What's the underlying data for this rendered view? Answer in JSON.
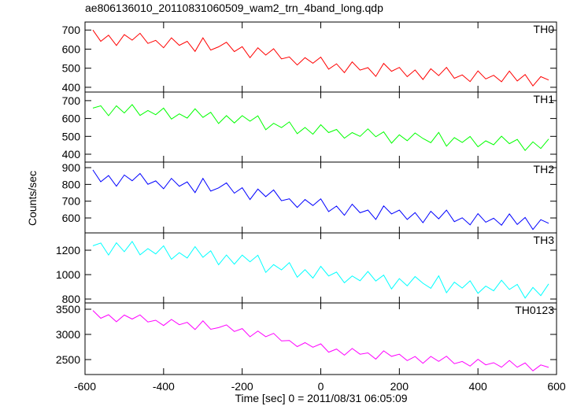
{
  "chart_data": {
    "type": "line",
    "title": "ae806136010_20110831060509_wam2_trn_4band_long.qdp",
    "xlabel": "Time [sec] 0 = 2011/08/31 06:05:09",
    "ylabel": "Counts/sec",
    "xlim": [
      -600,
      600
    ],
    "xticks": [
      -600,
      -400,
      -200,
      0,
      200,
      400,
      600
    ],
    "x": [
      -580,
      -560,
      -540,
      -520,
      -500,
      -480,
      -460,
      -440,
      -420,
      -400,
      -380,
      -360,
      -340,
      -320,
      -300,
      -280,
      -260,
      -240,
      -220,
      -200,
      -180,
      -160,
      -140,
      -120,
      -100,
      -80,
      -60,
      -40,
      -20,
      0,
      20,
      40,
      60,
      80,
      100,
      120,
      140,
      160,
      180,
      200,
      220,
      240,
      260,
      280,
      300,
      320,
      340,
      360,
      380,
      400,
      420,
      440,
      460,
      480,
      500,
      520,
      540,
      560,
      580
    ],
    "panels": [
      {
        "ylim": [
          375,
          742
        ],
        "yticks": [
          400,
          500,
          600,
          700
        ],
        "series": [
          {
            "name": "TH0",
            "color": "#ff0000",
            "values": [
              700,
              641,
              673,
              619,
              676,
              647,
              683,
              630,
              646,
              607,
              659,
              620,
              641,
              588,
              659,
              595,
              612,
              636,
              587,
              613,
              555,
              607,
              569,
              602,
              549,
              559,
              517,
              555,
              526,
              558,
              495,
              523,
              477,
              533,
              490,
              503,
              457,
              525,
              484,
              504,
              456,
              491,
              441,
              497,
              461,
              504,
              447,
              465,
              430,
              486,
              444,
              463,
              429,
              485,
              433,
              467,
              407,
              456,
              438
            ]
          }
        ]
      },
      {
        "ylim": [
          356,
          748
        ],
        "yticks": [
          400,
          500,
          600,
          700
        ],
        "series": [
          {
            "name": "TH1",
            "color": "#00ff00",
            "values": [
              658,
              671,
              616,
              671,
              631,
              678,
              617,
              645,
              621,
              658,
              597,
              626,
              602,
              654,
              606,
              635,
              572,
              616,
              575,
              616,
              585,
              615,
              537,
              573,
              549,
              581,
              515,
              550,
              512,
              565,
              521,
              539,
              490,
              521,
              500,
              542,
              498,
              525,
              462,
              509,
              476,
              519,
              488,
              465,
              522,
              445,
              493,
              466,
              499,
              442,
              475,
              453,
              501,
              459,
              483,
              421,
              469,
              432,
              485
            ]
          }
        ]
      },
      {
        "ylim": [
          511,
          933
        ],
        "yticks": [
          600,
          700,
          800,
          900
        ],
        "series": [
          {
            "name": "TH2",
            "color": "#0000ff",
            "values": [
              886,
              816,
              853,
              789,
              856,
              822,
              865,
              801,
              821,
              774,
              836,
              789,
              815,
              751,
              836,
              760,
              779,
              809,
              748,
              780,
              710,
              772,
              727,
              767,
              703,
              714,
              663,
              710,
              674,
              714,
              638,
              671,
              616,
              682,
              631,
              647,
              591,
              672,
              624,
              647,
              591,
              632,
              572,
              640,
              595,
              647,
              578,
              601,
              559,
              626,
              575,
              598,
              557,
              624,
              561,
              603,
              531,
              590,
              568
            ]
          }
        ]
      },
      {
        "ylim": [
          768,
          1342
        ],
        "yticks": [
          800,
          1000,
          1200
        ],
        "series": [
          {
            "name": "TH3",
            "color": "#00ffff",
            "values": [
              1236,
              1259,
              1161,
              1261,
              1188,
              1272,
              1162,
              1213,
              1170,
              1236,
              1126,
              1180,
              1136,
              1229,
              1142,
              1195,
              1081,
              1161,
              1086,
              1160,
              1105,
              1159,
              1018,
              1082,
              1039,
              1098,
              979,
              1041,
              972,
              1068,
              989,
              1021,
              933,
              989,
              950,
              1026,
              947,
              996,
              883,
              967,
              908,
              984,
              929,
              888,
              990,
              852,
              938,
              890,
              949,
              847,
              906,
              867,
              954,
              878,
              920,
              808,
              895,
              828,
              924
            ]
          }
        ]
      },
      {
        "ylim": [
          2203,
          3625
        ],
        "yticks": [
          2500,
          3000,
          3500
        ],
        "series": [
          {
            "name": "TH0123",
            "color": "#ff00ff",
            "values": [
              3475,
              3320,
              3391,
              3251,
              3384,
              3304,
              3388,
              3247,
              3281,
              3176,
              3297,
              3192,
              3239,
              3097,
              3268,
              3101,
              3134,
              3189,
              3057,
              3115,
              2953,
              3067,
              2955,
              3021,
              2871,
              2880,
              2758,
              2836,
              2746,
              2813,
              2647,
              2710,
              2588,
              2721,
              2606,
              2633,
              2509,
              2673,
              2564,
              2606,
              2480,
              2561,
              2427,
              2562,
              2464,
              2567,
              2419,
              2462,
              2370,
              2506,
              2395,
              2438,
              2349,
              2483,
              2349,
              2432,
              2277,
              2394,
              2345
            ]
          }
        ]
      }
    ]
  }
}
